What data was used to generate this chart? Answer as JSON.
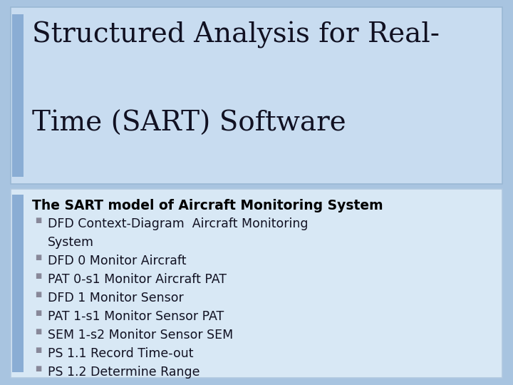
{
  "background_color": "#a8c4e0",
  "title_text_line1": "Structured Analysis for Real-",
  "title_text_line2": "Time (SART) Software",
  "title_font_size": 28,
  "title_color": "#111122",
  "title_box_color": "#c8dcf0",
  "title_bar_color": "#8aadd4",
  "title_bar_width": 16,
  "content_box_color": "#d8e8f5",
  "content_box_border": "#b0c8e0",
  "subtitle_text": "The SART model of Aircraft Monitoring System",
  "subtitle_font_size": 13.5,
  "subtitle_color": "#000000",
  "bullet_font_size": 12.5,
  "bullet_color": "#111122",
  "bullet_marker_color": "#888899",
  "bullets": [
    "DFD Context-Diagram  Aircraft Monitoring",
    "    System",
    "DFD 0 Monitor Aircraft",
    "PAT 0-s1 Monitor Aircraft PAT",
    "DFD 1 Monitor Sensor",
    "PAT 1-s1 Monitor Sensor PAT",
    "SEM 1-s2 Monitor Sensor SEM",
    "PS 1.1 Record Time-out",
    "PS 1.2 Determine Range"
  ],
  "bullet_has_marker": [
    true,
    false,
    true,
    true,
    true,
    true,
    true,
    true,
    true
  ]
}
